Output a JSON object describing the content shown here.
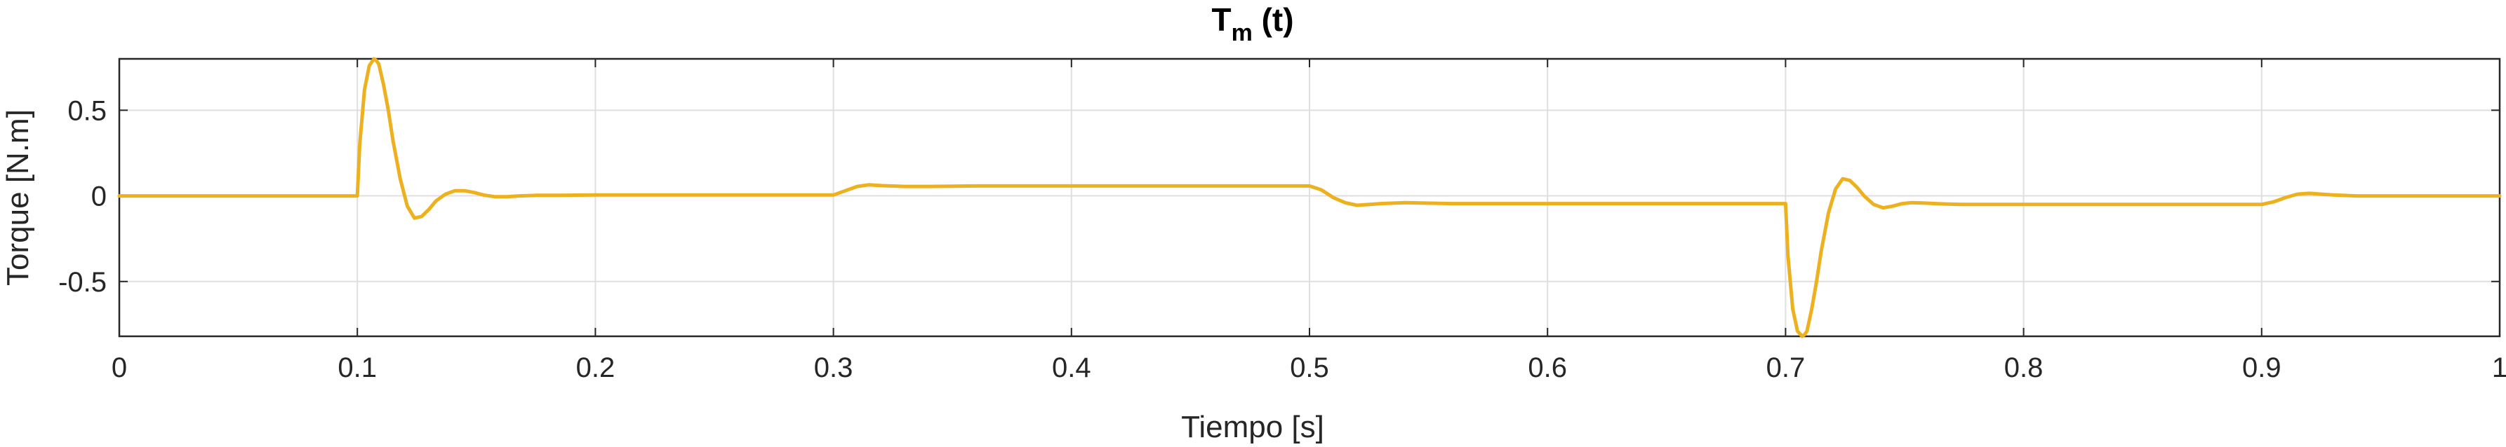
{
  "chart_data": {
    "type": "line",
    "title": "T",
    "title_subscript": "m",
    "title_suffix": " (t)",
    "xlabel": "Tiempo [s]",
    "ylabel": "Torque [N.m]",
    "xlim": [
      0,
      1
    ],
    "ylim": [
      -0.82,
      0.8
    ],
    "grid": true,
    "box": true,
    "x_ticks": [
      0,
      0.1,
      0.2,
      0.3,
      0.4,
      0.5,
      0.6,
      0.7,
      0.8,
      0.9,
      1
    ],
    "x_tick_labels": [
      "0",
      "0.1",
      "0.2",
      "0.3",
      "0.4",
      "0.5",
      "0.6",
      "0.7",
      "0.8",
      "0.9",
      "1"
    ],
    "y_ticks": [
      -0.5,
      0,
      0.5
    ],
    "y_tick_labels": [
      "-0.5",
      "0",
      "0.5"
    ],
    "series": [
      {
        "color": "#EDB120",
        "x": [
          0,
          0.1,
          0.101,
          0.103,
          0.105,
          0.107,
          0.108,
          0.109,
          0.111,
          0.113,
          0.115,
          0.118,
          0.121,
          0.124,
          0.127,
          0.13,
          0.133,
          0.137,
          0.141,
          0.145,
          0.149,
          0.153,
          0.158,
          0.163,
          0.168,
          0.175,
          0.185,
          0.2,
          0.3,
          0.305,
          0.31,
          0.315,
          0.32,
          0.33,
          0.34,
          0.36,
          0.4,
          0.5,
          0.505,
          0.51,
          0.515,
          0.52,
          0.53,
          0.54,
          0.56,
          0.6,
          0.7,
          0.701,
          0.703,
          0.705,
          0.707,
          0.708,
          0.709,
          0.711,
          0.713,
          0.715,
          0.718,
          0.721,
          0.724,
          0.727,
          0.73,
          0.733,
          0.737,
          0.741,
          0.745,
          0.749,
          0.753,
          0.758,
          0.763,
          0.768,
          0.775,
          0.785,
          0.8,
          0.9,
          0.905,
          0.91,
          0.915,
          0.92,
          0.93,
          0.94,
          0.96,
          1
        ],
        "y": [
          0,
          0,
          0.3,
          0.62,
          0.76,
          0.8,
          0.79,
          0.77,
          0.65,
          0.5,
          0.32,
          0.1,
          -0.06,
          -0.13,
          -0.12,
          -0.08,
          -0.03,
          0.01,
          0.03,
          0.03,
          0.02,
          0.005,
          -0.005,
          -0.005,
          0,
          0.003,
          0.003,
          0.005,
          0.005,
          0.03,
          0.055,
          0.065,
          0.06,
          0.055,
          0.055,
          0.058,
          0.058,
          0.058,
          0.035,
          -0.01,
          -0.04,
          -0.055,
          -0.045,
          -0.04,
          -0.045,
          -0.045,
          -0.045,
          -0.35,
          -0.66,
          -0.79,
          -0.82,
          -0.81,
          -0.79,
          -0.66,
          -0.5,
          -0.32,
          -0.1,
          0.04,
          0.1,
          0.09,
          0.05,
          0,
          -0.05,
          -0.07,
          -0.06,
          -0.045,
          -0.04,
          -0.042,
          -0.045,
          -0.048,
          -0.05,
          -0.05,
          -0.05,
          -0.05,
          -0.035,
          -0.01,
          0.01,
          0.015,
          0.005,
          0,
          0,
          0
        ]
      }
    ]
  }
}
